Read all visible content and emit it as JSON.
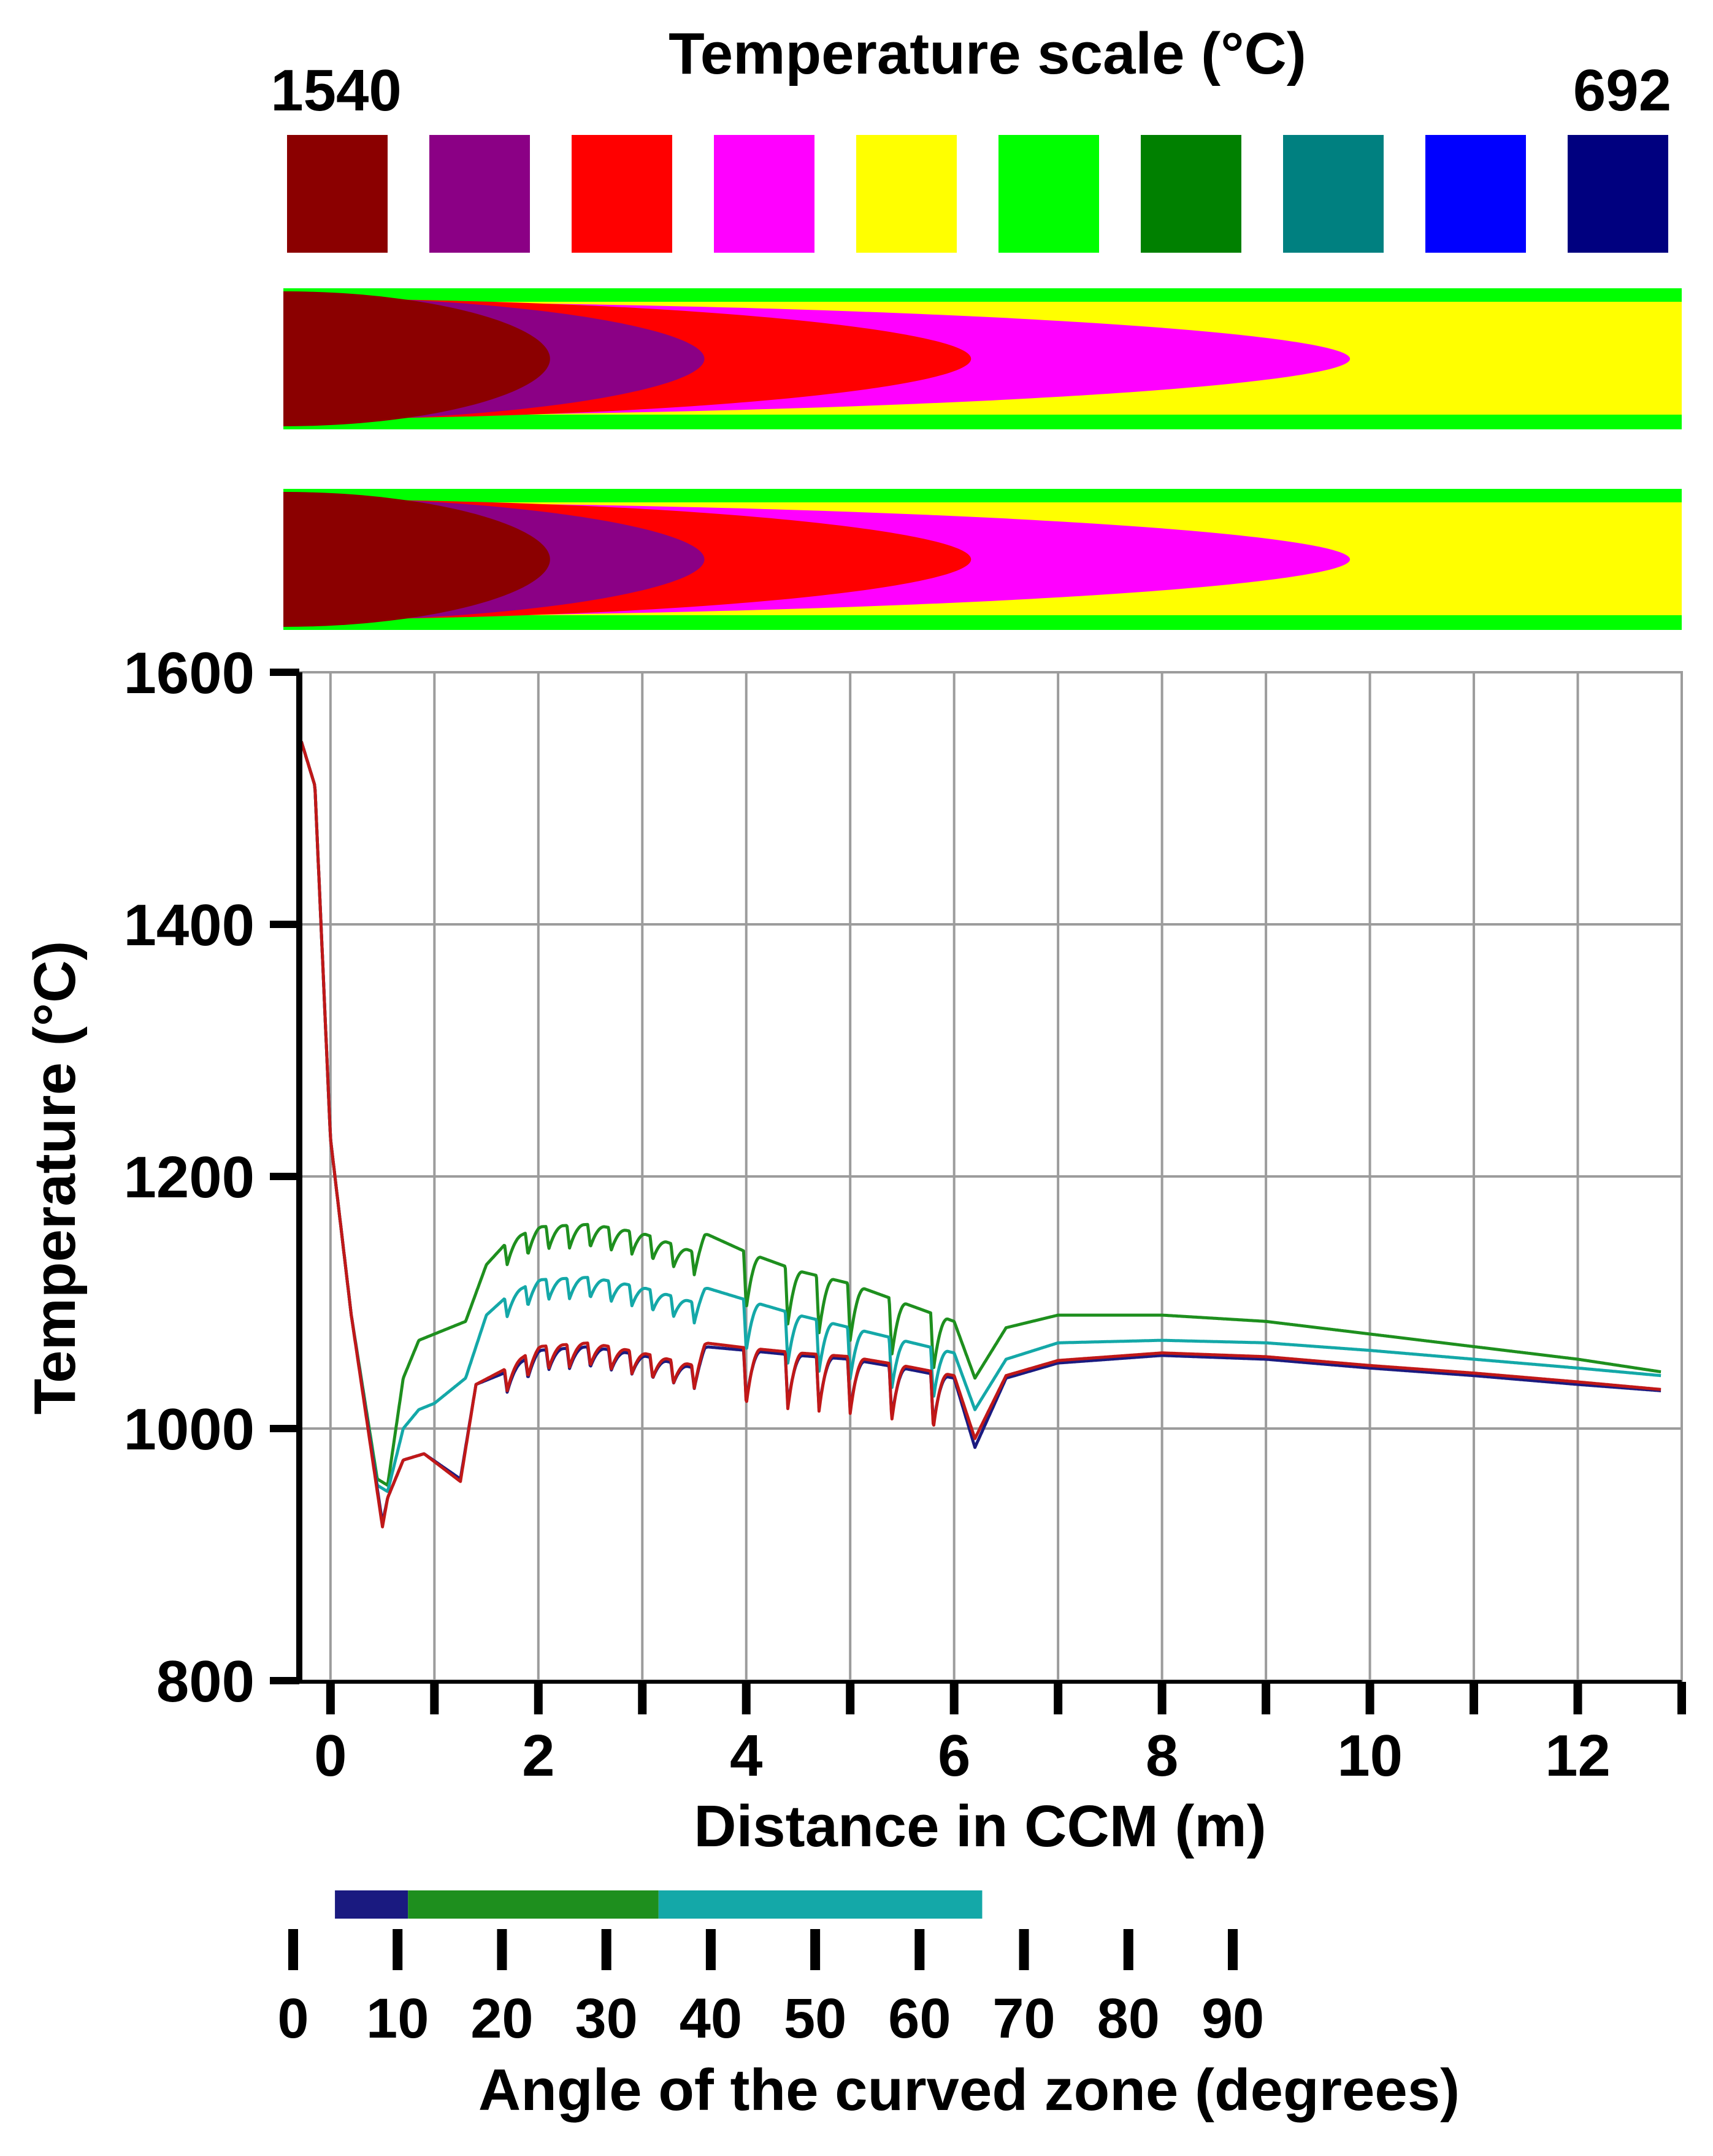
{
  "header": {
    "title": "Temperature scale (°C)",
    "max_label": "1540",
    "min_label": "692"
  },
  "scale_colors": [
    "#8b0000",
    "#8b0085",
    "#ff0000",
    "#ff00ff",
    "#ffff00",
    "#00ff00",
    "#008000",
    "#008080",
    "#0000ff",
    "#00007f"
  ],
  "chart_data": [
    {
      "type": "heatmap",
      "title": "Temperature scale (°C)",
      "range_labels": [
        "1540",
        "692"
      ],
      "bands": [
        {
          "name": "upper-slab-section",
          "isotherm_end_m": [
            0.0,
            1.9,
            3.0,
            4.9,
            7.6,
            11.0
          ]
        },
        {
          "name": "lower-slab-section",
          "isotherm_end_m": [
            0.0,
            1.9,
            3.0,
            4.9,
            7.6,
            11.0
          ]
        }
      ]
    },
    {
      "type": "line",
      "xlabel": "Distance in CCM (m)",
      "ylabel": "Temperature (°C)",
      "xlim": [
        -0.3,
        13
      ],
      "ylim": [
        800,
        1600
      ],
      "xticks": [
        0,
        2,
        4,
        6,
        8,
        10,
        12
      ],
      "yticks": [
        800,
        1000,
        1200,
        1400,
        1600
      ],
      "grid": true,
      "series": [
        {
          "name": "green",
          "color": "#1e8f1e",
          "amp": 1.0,
          "points": [
            [
              -0.28,
              1545
            ],
            [
              -0.15,
              1510
            ],
            [
              0.0,
              1230
            ],
            [
              0.2,
              1090
            ],
            [
              0.45,
              960
            ],
            [
              0.55,
              955
            ],
            [
              0.7,
              1040
            ],
            [
              0.85,
              1070
            ],
            [
              1.0,
              1075
            ],
            [
              1.3,
              1085
            ],
            [
              1.5,
              1130
            ],
            [
              1.7,
              1148
            ],
            [
              2.0,
              1160
            ],
            [
              2.5,
              1162
            ],
            [
              3.0,
              1155
            ],
            [
              3.5,
              1140
            ],
            [
              3.6,
              1155
            ],
            [
              4.0,
              1140
            ],
            [
              4.5,
              1125
            ],
            [
              5.0,
              1115
            ],
            [
              5.5,
              1100
            ],
            [
              6.0,
              1085
            ],
            [
              6.2,
              1040
            ],
            [
              6.5,
              1080
            ],
            [
              7.0,
              1090
            ],
            [
              8.0,
              1090
            ],
            [
              9.0,
              1085
            ],
            [
              10.0,
              1075
            ],
            [
              11.0,
              1065
            ],
            [
              12.0,
              1055
            ],
            [
              12.8,
              1045
            ]
          ]
        },
        {
          "name": "teal",
          "color": "#14a8a8",
          "amp": 0.9,
          "points": [
            [
              -0.28,
              1545
            ],
            [
              -0.15,
              1510
            ],
            [
              0.0,
              1230
            ],
            [
              0.2,
              1090
            ],
            [
              0.45,
              955
            ],
            [
              0.55,
              950
            ],
            [
              0.7,
              1000
            ],
            [
              0.85,
              1015
            ],
            [
              1.0,
              1020
            ],
            [
              1.3,
              1040
            ],
            [
              1.5,
              1090
            ],
            [
              1.7,
              1105
            ],
            [
              2.0,
              1118
            ],
            [
              2.5,
              1120
            ],
            [
              3.0,
              1112
            ],
            [
              3.5,
              1100
            ],
            [
              3.6,
              1112
            ],
            [
              4.0,
              1102
            ],
            [
              4.5,
              1090
            ],
            [
              5.0,
              1080
            ],
            [
              5.5,
              1070
            ],
            [
              6.0,
              1060
            ],
            [
              6.2,
              1015
            ],
            [
              6.5,
              1055
            ],
            [
              7.0,
              1068
            ],
            [
              8.0,
              1070
            ],
            [
              9.0,
              1068
            ],
            [
              10.0,
              1062
            ],
            [
              11.0,
              1055
            ],
            [
              12.0,
              1048
            ],
            [
              12.8,
              1042
            ]
          ]
        },
        {
          "name": "navy",
          "color": "#1a1a80",
          "amp": 0.9,
          "points": [
            [
              -0.28,
              1545
            ],
            [
              -0.15,
              1510
            ],
            [
              0.0,
              1230
            ],
            [
              0.2,
              1090
            ],
            [
              0.5,
              925
            ],
            [
              0.55,
              945
            ],
            [
              0.7,
              975
            ],
            [
              0.9,
              980
            ],
            [
              1.25,
              960
            ],
            [
              1.4,
              1035
            ],
            [
              1.7,
              1045
            ],
            [
              2.0,
              1062
            ],
            [
              2.5,
              1065
            ],
            [
              3.0,
              1058
            ],
            [
              3.5,
              1048
            ],
            [
              3.6,
              1065
            ],
            [
              4.0,
              1062
            ],
            [
              4.5,
              1058
            ],
            [
              5.0,
              1055
            ],
            [
              5.5,
              1048
            ],
            [
              6.0,
              1040
            ],
            [
              6.2,
              985
            ],
            [
              6.5,
              1040
            ],
            [
              7.0,
              1052
            ],
            [
              8.0,
              1058
            ],
            [
              9.0,
              1055
            ],
            [
              10.0,
              1048
            ],
            [
              11.0,
              1042
            ],
            [
              12.0,
              1035
            ],
            [
              12.8,
              1030
            ]
          ]
        },
        {
          "name": "red",
          "color": "#c01818",
          "amp": 1.0,
          "points": [
            [
              -0.28,
              1545
            ],
            [
              -0.15,
              1510
            ],
            [
              0.0,
              1230
            ],
            [
              0.2,
              1090
            ],
            [
              0.5,
              922
            ],
            [
              0.55,
              945
            ],
            [
              0.7,
              975
            ],
            [
              0.9,
              980
            ],
            [
              1.25,
              958
            ],
            [
              1.4,
              1035
            ],
            [
              1.7,
              1048
            ],
            [
              2.0,
              1065
            ],
            [
              2.5,
              1068
            ],
            [
              3.0,
              1060
            ],
            [
              3.5,
              1050
            ],
            [
              3.6,
              1068
            ],
            [
              4.0,
              1064
            ],
            [
              4.5,
              1060
            ],
            [
              5.0,
              1057
            ],
            [
              5.5,
              1050
            ],
            [
              6.0,
              1042
            ],
            [
              6.2,
              992
            ],
            [
              6.5,
              1042
            ],
            [
              7.0,
              1054
            ],
            [
              8.0,
              1060
            ],
            [
              9.0,
              1057
            ],
            [
              10.0,
              1050
            ],
            [
              11.0,
              1044
            ],
            [
              12.0,
              1037
            ],
            [
              12.8,
              1031
            ]
          ]
        }
      ],
      "sawtooth_dips": [
        1.7,
        1.9,
        2.1,
        2.3,
        2.5,
        2.7,
        2.9,
        3.1,
        3.3,
        3.5,
        4.0,
        4.4,
        4.7,
        5.0,
        5.4,
        5.8
      ]
    },
    {
      "type": "bar",
      "orientation": "horizontal",
      "xlabel": "Angle of the curved zone (degrees)",
      "xlim": [
        0,
        90
      ],
      "xticks": [
        0,
        10,
        20,
        30,
        40,
        50,
        60,
        70,
        80,
        90
      ],
      "segments": [
        {
          "start": 4,
          "end": 11,
          "color": "#1a1a80"
        },
        {
          "start": 11,
          "end": 35,
          "color": "#1e8f1e"
        },
        {
          "start": 35,
          "end": 66,
          "color": "#14a8a8"
        }
      ]
    }
  ]
}
